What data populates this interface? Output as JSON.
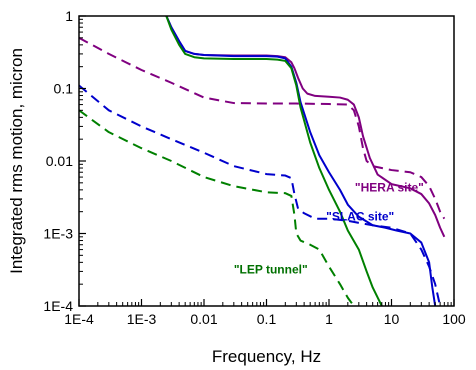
{
  "chart_data": {
    "type": "line",
    "title": "",
    "xlabel": "Frequency, Hz",
    "ylabel": "Integrated rms motion, micron",
    "x_scale": "log",
    "y_scale": "log",
    "xlim": [
      0.0001,
      100
    ],
    "ylim": [
      0.0001,
      1
    ],
    "grid": false,
    "legend": "none",
    "x_ticks": [
      {
        "value": 0.0001,
        "label": "1E-4"
      },
      {
        "value": 0.001,
        "label": "1E-3"
      },
      {
        "value": 0.01,
        "label": "0.01"
      },
      {
        "value": 0.1,
        "label": "0.1"
      },
      {
        "value": 1,
        "label": "1"
      },
      {
        "value": 10,
        "label": "10"
      },
      {
        "value": 100,
        "label": "100"
      }
    ],
    "y_ticks": [
      {
        "value": 0.0001,
        "label": "1E-4"
      },
      {
        "value": 0.001,
        "label": "1E-3"
      },
      {
        "value": 0.01,
        "label": "0.01"
      },
      {
        "value": 0.1,
        "label": "0.1"
      },
      {
        "value": 1,
        "label": "1"
      }
    ],
    "annotations": [
      {
        "text": "\"HERA site\"",
        "x": 2.6,
        "y": 0.0038,
        "color": "#800080"
      },
      {
        "text": "\"SLAC site\"",
        "x": 0.9,
        "y": 0.0015,
        "color": "#0000cc"
      },
      {
        "text": "\"LEP tunnel\"",
        "x": 0.03,
        "y": 0.00028,
        "color": "#007000"
      }
    ],
    "series": [
      {
        "color": "#800080",
        "dash": false,
        "points": [
          [
            0.0025,
            1.0
          ],
          [
            0.003,
            0.7
          ],
          [
            0.004,
            0.45
          ],
          [
            0.005,
            0.33
          ],
          [
            0.007,
            0.3
          ],
          [
            0.01,
            0.29
          ],
          [
            0.03,
            0.285
          ],
          [
            0.1,
            0.285
          ],
          [
            0.15,
            0.28
          ],
          [
            0.2,
            0.27
          ],
          [
            0.25,
            0.23
          ],
          [
            0.28,
            0.19
          ],
          [
            0.32,
            0.14
          ],
          [
            0.38,
            0.1
          ],
          [
            0.45,
            0.085
          ],
          [
            0.6,
            0.079
          ],
          [
            1,
            0.077
          ],
          [
            1.5,
            0.075
          ],
          [
            2,
            0.07
          ],
          [
            2.5,
            0.06
          ],
          [
            3,
            0.04
          ],
          [
            3.5,
            0.022
          ],
          [
            4.5,
            0.011
          ],
          [
            6,
            0.0065
          ],
          [
            10,
            0.0048
          ],
          [
            20,
            0.0042
          ],
          [
            30,
            0.0035
          ],
          [
            40,
            0.0026
          ],
          [
            50,
            0.0018
          ],
          [
            60,
            0.0012
          ],
          [
            70,
            0.0009
          ]
        ]
      },
      {
        "color": "#0000cc",
        "dash": false,
        "points": [
          [
            0.0025,
            1.0
          ],
          [
            0.003,
            0.7
          ],
          [
            0.004,
            0.45
          ],
          [
            0.005,
            0.33
          ],
          [
            0.007,
            0.3
          ],
          [
            0.01,
            0.29
          ],
          [
            0.03,
            0.28
          ],
          [
            0.1,
            0.28
          ],
          [
            0.15,
            0.275
          ],
          [
            0.2,
            0.26
          ],
          [
            0.25,
            0.2
          ],
          [
            0.3,
            0.12
          ],
          [
            0.35,
            0.065
          ],
          [
            0.5,
            0.025
          ],
          [
            0.7,
            0.012
          ],
          [
            1,
            0.007
          ],
          [
            1.5,
            0.004
          ],
          [
            2,
            0.0025
          ],
          [
            3,
            0.0017
          ],
          [
            5,
            0.0013
          ],
          [
            8,
            0.0012
          ],
          [
            12,
            0.0011
          ],
          [
            20,
            0.001
          ],
          [
            30,
            0.00075
          ],
          [
            40,
            0.0004
          ],
          [
            45,
            0.00018
          ],
          [
            50,
            0.0001
          ]
        ]
      },
      {
        "color": "#008000",
        "dash": false,
        "points": [
          [
            0.0025,
            1.0
          ],
          [
            0.003,
            0.65
          ],
          [
            0.004,
            0.4
          ],
          [
            0.005,
            0.3
          ],
          [
            0.007,
            0.27
          ],
          [
            0.01,
            0.26
          ],
          [
            0.03,
            0.255
          ],
          [
            0.1,
            0.255
          ],
          [
            0.15,
            0.25
          ],
          [
            0.2,
            0.24
          ],
          [
            0.25,
            0.19
          ],
          [
            0.3,
            0.11
          ],
          [
            0.35,
            0.055
          ],
          [
            0.5,
            0.018
          ],
          [
            0.7,
            0.008
          ],
          [
            1,
            0.004
          ],
          [
            1.5,
            0.002
          ],
          [
            2,
            0.0011
          ],
          [
            3,
            0.0006
          ],
          [
            4,
            0.0003
          ],
          [
            5,
            0.00018
          ],
          [
            7,
            0.0001
          ]
        ]
      },
      {
        "color": "#800080",
        "dash": true,
        "points": [
          [
            0.0001,
            0.5
          ],
          [
            0.0003,
            0.3
          ],
          [
            0.001,
            0.18
          ],
          [
            0.003,
            0.12
          ],
          [
            0.01,
            0.075
          ],
          [
            0.03,
            0.063
          ],
          [
            0.1,
            0.062
          ],
          [
            0.3,
            0.062
          ],
          [
            1,
            0.061
          ],
          [
            2,
            0.06
          ],
          [
            2.5,
            0.05
          ],
          [
            3,
            0.03
          ],
          [
            3.5,
            0.015
          ],
          [
            4,
            0.01
          ],
          [
            5,
            0.0085
          ],
          [
            10,
            0.0075
          ],
          [
            20,
            0.007
          ],
          [
            30,
            0.006
          ],
          [
            40,
            0.0045
          ],
          [
            50,
            0.003
          ],
          [
            60,
            0.002
          ],
          [
            70,
            0.0016
          ]
        ]
      },
      {
        "color": "#0000cc",
        "dash": true,
        "points": [
          [
            0.0001,
            0.11
          ],
          [
            0.0003,
            0.05
          ],
          [
            0.001,
            0.03
          ],
          [
            0.003,
            0.02
          ],
          [
            0.01,
            0.013
          ],
          [
            0.03,
            0.0085
          ],
          [
            0.1,
            0.0066
          ],
          [
            0.2,
            0.0063
          ],
          [
            0.25,
            0.0058
          ],
          [
            0.28,
            0.0035
          ],
          [
            0.32,
            0.0022
          ],
          [
            0.4,
            0.0019
          ],
          [
            0.6,
            0.0016
          ],
          [
            1,
            0.0016
          ],
          [
            2,
            0.0015
          ],
          [
            3,
            0.0014
          ],
          [
            5,
            0.0013
          ],
          [
            10,
            0.0012
          ],
          [
            20,
            0.001
          ],
          [
            30,
            0.0006
          ],
          [
            40,
            0.00035
          ],
          [
            50,
            0.0002
          ],
          [
            60,
            0.0001
          ]
        ]
      },
      {
        "color": "#008000",
        "dash": true,
        "points": [
          [
            0.0001,
            0.05
          ],
          [
            0.0003,
            0.025
          ],
          [
            0.001,
            0.015
          ],
          [
            0.003,
            0.01
          ],
          [
            0.01,
            0.006
          ],
          [
            0.03,
            0.0045
          ],
          [
            0.1,
            0.0037
          ],
          [
            0.2,
            0.0036
          ],
          [
            0.25,
            0.0033
          ],
          [
            0.28,
            0.0018
          ],
          [
            0.3,
            0.001
          ],
          [
            0.35,
            0.0008
          ],
          [
            0.5,
            0.0007
          ],
          [
            0.7,
            0.0006
          ],
          [
            1,
            0.00035
          ],
          [
            1.5,
            0.0002
          ],
          [
            2,
            0.00013
          ],
          [
            2.5,
            0.0001
          ]
        ]
      }
    ]
  }
}
